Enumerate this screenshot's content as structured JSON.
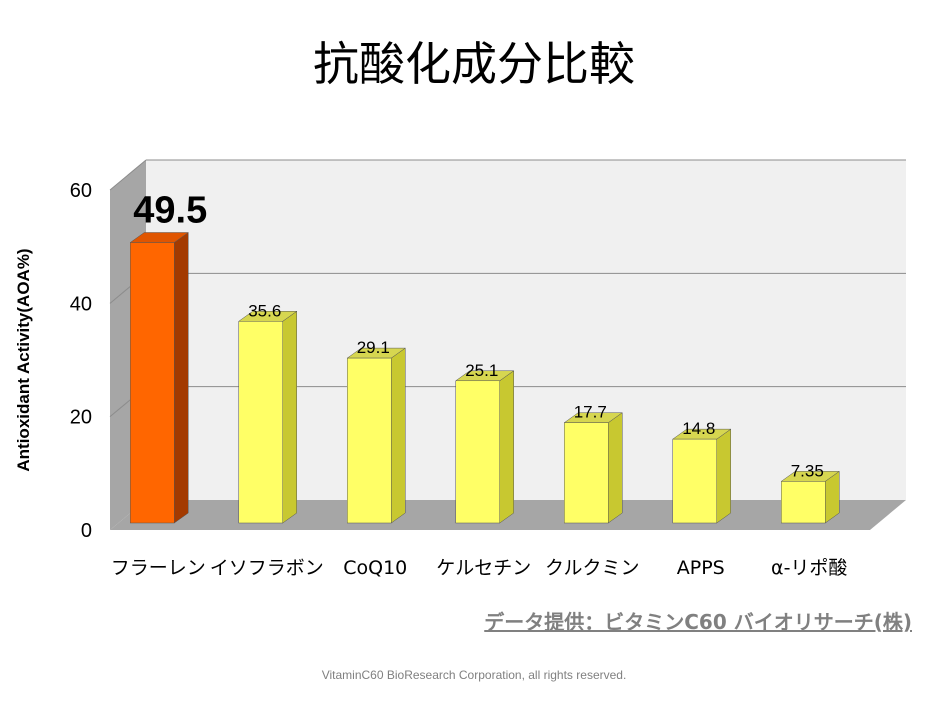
{
  "title": "抗酸化成分比較",
  "source_note": "データ提供：ビタミンC60 バイオリサーチ(株)",
  "footer": "VitaminC60 BioResearch Corporation, all rights reserved.",
  "colors": {
    "highlight_front": "#ff6600",
    "highlight_side": "#a33a00",
    "highlight_top": "#e05500",
    "bar_front": "#ffff66",
    "bar_side": "#c8c830",
    "bar_top": "#d6d650",
    "back_wall": "#f0f0f0",
    "side_wall": "#a6a6a6",
    "floor": "#a6a6a6"
  },
  "chart_data": {
    "type": "bar",
    "title": "",
    "xlabel": "",
    "ylabel": "Antioxidant Activity(AOA%)",
    "ylim": [
      0,
      60
    ],
    "yticks": [
      0,
      20,
      40,
      60
    ],
    "grid": true,
    "categories": [
      "フラーレン",
      "イソフラボン",
      "CoQ10",
      "ケルセチン",
      "クルクミン",
      "APPS",
      "α-リポ酸"
    ],
    "values": [
      49.5,
      35.6,
      29.1,
      25.1,
      17.7,
      14.8,
      7.35
    ],
    "value_labels": [
      "49.5",
      "35.6",
      "29.1",
      "25.1",
      "17.7",
      "14.8",
      "7.35"
    ],
    "highlight_index": 0
  }
}
